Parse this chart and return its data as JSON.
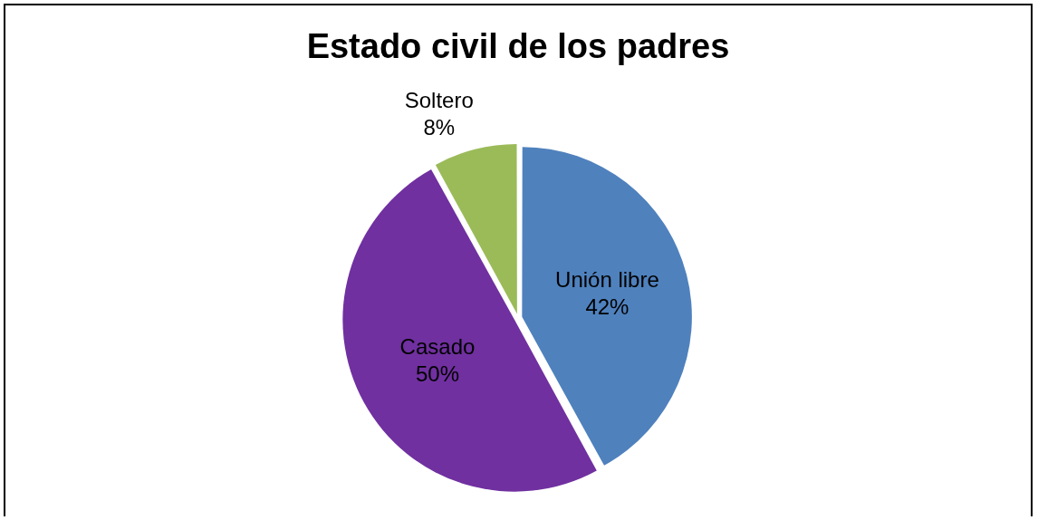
{
  "chart_data": {
    "type": "pie",
    "title": "Estado civil de los padres",
    "categories": [
      "Unión libre",
      "Casado",
      "Soltero"
    ],
    "values": [
      42,
      50,
      8
    ],
    "colors": [
      "#4f81bd",
      "#7030a0",
      "#9bbb59"
    ],
    "value_labels": [
      "42%",
      "50%",
      "8%"
    ],
    "legend": false
  }
}
